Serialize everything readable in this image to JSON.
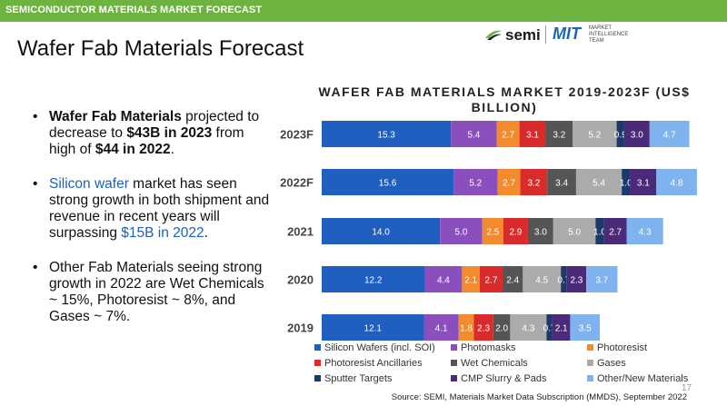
{
  "header": {
    "bar_text": "SEMICONDUCTOR MATERIALS MARKET FORECAST"
  },
  "page": {
    "title": "Wafer Fab Materials Forecast",
    "page_number": "17"
  },
  "logo": {
    "semi": "semi",
    "mit": "MIT",
    "mit_sub": [
      "MARKET",
      "INTELLIGENCE",
      "TEAM"
    ]
  },
  "bullets": {
    "b1": {
      "bold1": "Wafer Fab Materials",
      "t1": " projected to decrease to ",
      "bold2": "$43B in 2023",
      "t2": " from high of ",
      "bold3": "$44 in 2022",
      "t3": "."
    },
    "b2": {
      "hl1": "Silicon wafer",
      "t1": " market has seen strong growth in both shipment and revenue in recent years will surpassing ",
      "hl2": "$15B in 2022",
      "t2": "."
    },
    "b3": {
      "t1": "Other Fab Materials seeing strong growth in 2022 are Wet Chemicals ~ 15%, Photoresist ~ 8%, and Gases ~ 7%."
    }
  },
  "source": "Source: SEMI, Materials Market Data Subscription (MMDS), September 2022",
  "chart_data": {
    "type": "bar",
    "orientation": "horizontal",
    "stacked": true,
    "title": "WAFER FAB MATERIALS MARKET 2019-2023F (US$ BILLION)",
    "categories": [
      "2023F",
      "2022F",
      "2021",
      "2020",
      "2019"
    ],
    "series": [
      {
        "name": "Silicon Wafers (incl. SOI)",
        "color": "#1f5fbf",
        "values": [
          15.3,
          15.6,
          14.0,
          12.2,
          12.1
        ]
      },
      {
        "name": "Photomasks",
        "color": "#8a4fbd",
        "values": [
          5.4,
          5.2,
          5.0,
          4.4,
          4.1
        ]
      },
      {
        "name": "Photoresist",
        "color": "#f28a2e",
        "values": [
          2.7,
          2.7,
          2.5,
          2.1,
          1.8
        ]
      },
      {
        "name": "Photoresist Ancillaries",
        "color": "#d92b2b",
        "values": [
          3.1,
          3.2,
          2.9,
          2.7,
          2.3
        ]
      },
      {
        "name": "Wet Chemicals",
        "color": "#555555",
        "values": [
          3.2,
          3.4,
          3.0,
          2.4,
          2.0
        ]
      },
      {
        "name": "Gases",
        "color": "#ababab",
        "values": [
          5.2,
          5.4,
          5.0,
          4.5,
          4.3
        ]
      },
      {
        "name": "Sputter Targets",
        "color": "#1b3a6b",
        "values": [
          0.9,
          1.0,
          1.0,
          0.7,
          0.7
        ]
      },
      {
        "name": "CMP Slurry & Pads",
        "color": "#4b2a7a",
        "values": [
          3.0,
          3.1,
          2.7,
          2.3,
          2.1
        ]
      },
      {
        "name": "Other/New Materials",
        "color": "#7fb3f0",
        "values": [
          4.7,
          4.8,
          4.3,
          3.7,
          3.5
        ]
      }
    ],
    "data_labels": [
      [
        "15.3",
        "5.4",
        "2.7",
        "3.1",
        "3.2",
        "5.2",
        "0.9",
        "3.0",
        "4.7"
      ],
      [
        "15.6",
        "5.2",
        "2.7",
        "3.2",
        "3.4",
        "5.4",
        "1.0",
        "3.1",
        "4.8"
      ],
      [
        "14.0",
        "5.0",
        "2.5",
        "2.9",
        "3.0",
        "5.0",
        "1.0",
        "2.7",
        "4.3"
      ],
      [
        "12.2",
        "4.4",
        "2.1",
        "2.7",
        "2.4",
        "4.5",
        "0.7",
        "2.3",
        "3.7"
      ],
      [
        "12.1",
        "4.1",
        "1.8",
        "2.3",
        "2.0",
        "4.3",
        "0.7",
        "2.1",
        "3.5"
      ]
    ],
    "legend": "bottom",
    "grid": false
  }
}
